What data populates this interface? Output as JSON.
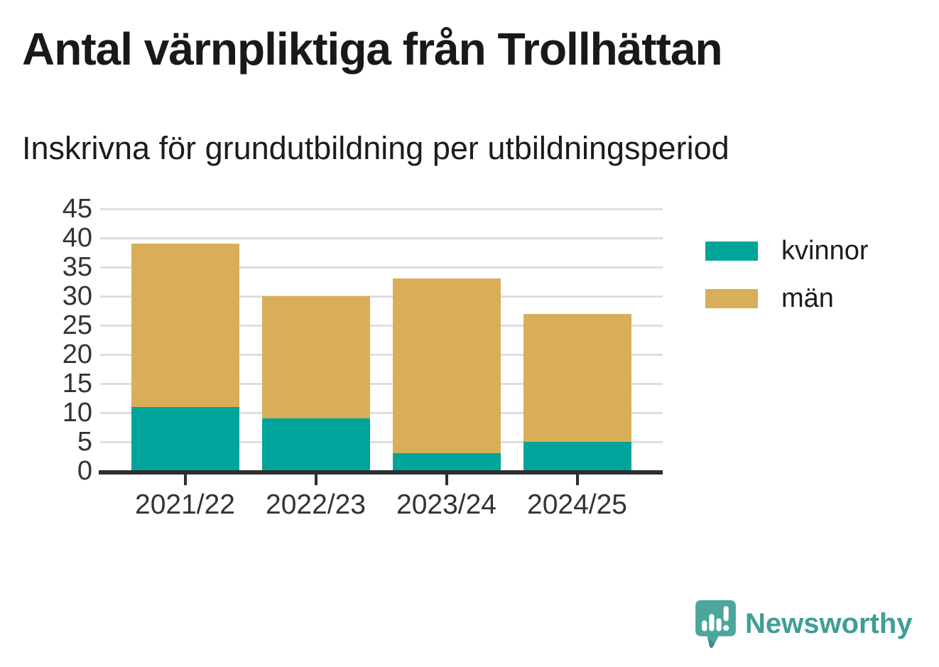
{
  "header": {
    "title": "Antal värnpliktiga från Trollhättan",
    "subtitle": "Inskrivna för grundutbildning per utbildningsperiod"
  },
  "chart_data": {
    "type": "bar",
    "stacked": true,
    "title": "Antal värnpliktiga från Trollhättan",
    "subtitle": "Inskrivna för grundutbildning per utbildningsperiod",
    "categories": [
      "2021/22",
      "2022/23",
      "2023/24",
      "2024/25"
    ],
    "series": [
      {
        "name": "kvinnor",
        "color": "#00a49b",
        "values": [
          11,
          9,
          3,
          5
        ]
      },
      {
        "name": "män",
        "color": "#d8ae58",
        "values": [
          28,
          21,
          30,
          22
        ]
      }
    ],
    "totals": [
      39,
      30,
      33,
      27
    ],
    "xlabel": "",
    "ylabel": "",
    "ylim": [
      0,
      45
    ],
    "yticks": [
      0,
      5,
      10,
      15,
      20,
      25,
      30,
      35,
      40,
      45
    ],
    "grid": "horizontal",
    "legend_position": "right",
    "axis_color": "#2e2e2e",
    "gridline_color": "#dedede",
    "label_color": "#333333"
  },
  "branding": {
    "name": "Newsworthy",
    "logo_icon": "speech-bubble-bar-chart-icon",
    "icon_color": "#4ba79e",
    "text_color": "#3f9e96"
  }
}
